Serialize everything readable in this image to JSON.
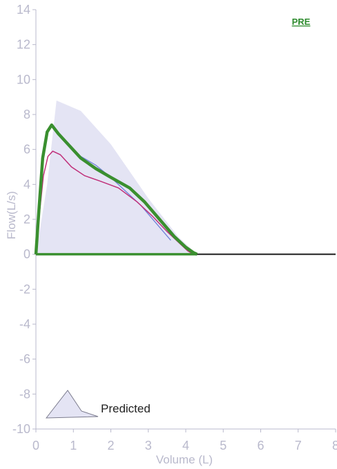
{
  "chart_data": {
    "type": "line",
    "badge": "PRE",
    "xlabel": "Volume (L)",
    "ylabel": "Flow(L/s)",
    "xlim": [
      0,
      8
    ],
    "ylim": [
      -10,
      14
    ],
    "xticks": [
      0,
      1,
      2,
      3,
      4,
      5,
      6,
      7,
      8
    ],
    "yticks": [
      14,
      12,
      10,
      8,
      6,
      4,
      2,
      0,
      -2,
      -4,
      -6,
      -8,
      -10
    ],
    "legend": {
      "label": "Predicted",
      "position": "bottom-left"
    },
    "colors": {
      "predicted_fill": "#e4e4f4",
      "measured_main": "#3a8f2f",
      "measured_magenta": "#c0307a",
      "measured_blue": "#6f7fd8",
      "baseline": "#1a1a1a",
      "axis": "#b9b9cc"
    },
    "series": [
      {
        "role": "predicted-band",
        "x": [
          0,
          0.3,
          0.55,
          1.2,
          2.0,
          3.0,
          3.8,
          4.3,
          4.3,
          0
        ],
        "y": [
          0,
          4.0,
          8.8,
          8.2,
          6.3,
          3.2,
          1.0,
          0,
          0,
          0
        ]
      },
      {
        "role": "measured-thick",
        "x": [
          0,
          0.08,
          0.18,
          0.3,
          0.42,
          0.6,
          0.9,
          1.2,
          1.6,
          2.0,
          2.5,
          2.9,
          3.3,
          3.7,
          4.0,
          4.2,
          4.3
        ],
        "y": [
          0,
          2.5,
          5.5,
          7.0,
          7.4,
          6.9,
          6.2,
          5.5,
          4.9,
          4.4,
          3.8,
          3.0,
          2.0,
          1.0,
          0.4,
          0.1,
          0
        ]
      },
      {
        "role": "measured-thin",
        "x": [
          0,
          0.08,
          0.2,
          0.32,
          0.45,
          0.65,
          0.95,
          1.3,
          1.7,
          2.2,
          2.7,
          3.1,
          3.5,
          3.8,
          4.05,
          4.2
        ],
        "y": [
          0,
          2.0,
          4.5,
          5.6,
          5.9,
          5.7,
          5.0,
          4.5,
          4.2,
          3.8,
          3.0,
          2.2,
          1.3,
          0.7,
          0.2,
          0
        ]
      },
      {
        "role": "measured-thin",
        "x": [
          1.2,
          1.6,
          2.0,
          2.4,
          2.8,
          3.2,
          3.6
        ],
        "y": [
          5.6,
          5.1,
          4.4,
          3.6,
          2.8,
          1.8,
          0.8
        ]
      }
    ]
  }
}
